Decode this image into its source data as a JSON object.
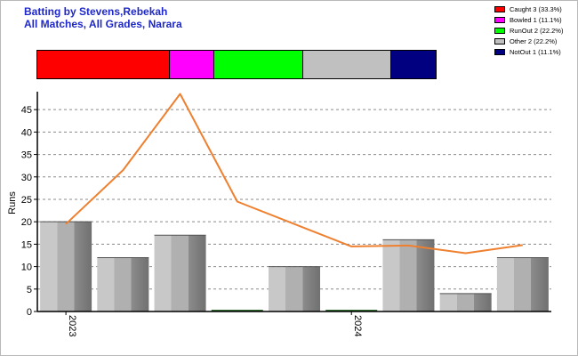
{
  "header": {
    "line1": "Batting by Stevens,Rebekah",
    "line2": "All Matches, All Grades, Narara"
  },
  "legend": {
    "items": [
      {
        "label": "Caught 3 (33.3%)",
        "color": "#ff0000",
        "share": 3
      },
      {
        "label": "Bowled 1 (11.1%)",
        "color": "#ff00ff",
        "share": 1
      },
      {
        "label": "RunOut 2 (22.2%)",
        "color": "#00ff00",
        "share": 2
      },
      {
        "label": "Other 2 (22.2%)",
        "color": "#c0c0c0",
        "share": 2
      },
      {
        "label": "NotOut 1 (11.1%)",
        "color": "#000080",
        "share": 1
      }
    ]
  },
  "chart_data": {
    "type": "bar",
    "ylabel": "Runs",
    "ylim": [
      0,
      49
    ],
    "yticks": [
      "0",
      "5",
      "10",
      "15",
      "20",
      "25",
      "30",
      "35",
      "40",
      "45"
    ],
    "grid": true,
    "x_tick_labels": [
      {
        "label": "2023",
        "index": 0
      },
      {
        "label": "2024",
        "index": 5
      }
    ],
    "series": [
      {
        "kind": "bar",
        "color": "#a0a0a0",
        "values": [
          20,
          12,
          17,
          0,
          10,
          0,
          16,
          4,
          12
        ]
      },
      {
        "kind": "line",
        "color": "#ee8030",
        "values": [
          19.5,
          31.5,
          48.5,
          24.5,
          19.5,
          14.5,
          14.7,
          13,
          14.8
        ]
      }
    ]
  }
}
